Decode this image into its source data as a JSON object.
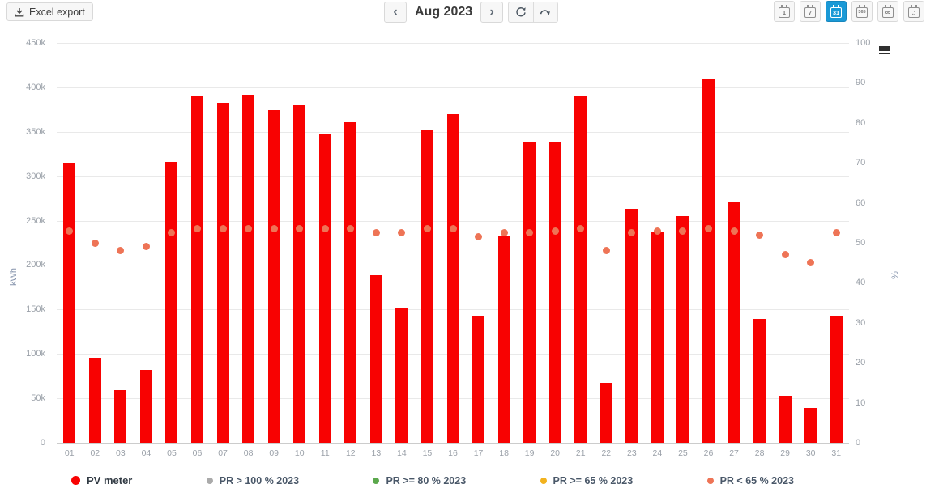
{
  "toolbar": {
    "excel_export_label": "Excel export",
    "nav": {
      "prev_icon": "‹",
      "title": "Aug 2023",
      "next_icon": "›"
    },
    "view_buttons": [
      {
        "label": "1",
        "active": false
      },
      {
        "label": "7",
        "active": false
      },
      {
        "label": "31",
        "active": true
      },
      {
        "label": "365",
        "active": false
      },
      {
        "label": "∞",
        "active": false
      },
      {
        "label": ".:",
        "active": false
      }
    ]
  },
  "chart_data": {
    "type": "bar",
    "title": "",
    "categories": [
      "01",
      "02",
      "03",
      "04",
      "05",
      "06",
      "07",
      "08",
      "09",
      "10",
      "11",
      "12",
      "13",
      "14",
      "15",
      "16",
      "17",
      "18",
      "19",
      "20",
      "21",
      "22",
      "23",
      "24",
      "25",
      "26",
      "27",
      "28",
      "29",
      "30",
      "31"
    ],
    "series": [
      {
        "name": "PV meter",
        "type": "bar",
        "axis": "left",
        "unit": "kWh",
        "color": "#f80202",
        "values": [
          315000,
          96000,
          59000,
          82000,
          316000,
          391000,
          383000,
          392000,
          374000,
          380000,
          347000,
          361000,
          189000,
          152000,
          353000,
          370000,
          142000,
          232000,
          338000,
          338000,
          391000,
          67000,
          263000,
          238000,
          255000,
          410000,
          271000,
          139000,
          53000,
          39000,
          142000
        ]
      },
      {
        "name": "PR < 65 % 2023",
        "type": "scatter",
        "axis": "right",
        "unit": "%",
        "color": "#ee7456",
        "values": [
          53,
          50,
          48,
          49,
          52.5,
          53.5,
          53.5,
          53.5,
          53.5,
          53.5,
          53.5,
          53.5,
          52.5,
          52.5,
          53.5,
          53.5,
          51.5,
          52.5,
          52.5,
          53,
          53.5,
          48,
          52.5,
          53,
          53,
          53.5,
          53,
          52,
          47,
          45,
          52.5
        ]
      }
    ],
    "y_left": {
      "label": "kWh",
      "min": 0,
      "max": 450000,
      "ticks": [
        "450k",
        "400k",
        "350k",
        "300k",
        "250k",
        "200k",
        "150k",
        "100k",
        "50k",
        "0"
      ]
    },
    "y_right": {
      "label": "%",
      "min": 0,
      "max": 100,
      "ticks": [
        "100",
        "90",
        "80",
        "70",
        "60",
        "50",
        "40",
        "30",
        "20",
        "10",
        "0"
      ]
    },
    "grid": true,
    "legend_position": "bottom",
    "legend": [
      {
        "label": "PV meter",
        "color": "#f80202",
        "primary": true
      },
      {
        "label": "PR > 100 % 2023",
        "color": "#aaaaaa",
        "primary": false
      },
      {
        "label": "PR >= 80 % 2023",
        "color": "#5ba84c",
        "primary": false
      },
      {
        "label": "PR >= 65 % 2023",
        "color": "#f2b21e",
        "primary": false
      },
      {
        "label": "PR < 65 % 2023",
        "color": "#ee7456",
        "primary": false
      }
    ]
  }
}
